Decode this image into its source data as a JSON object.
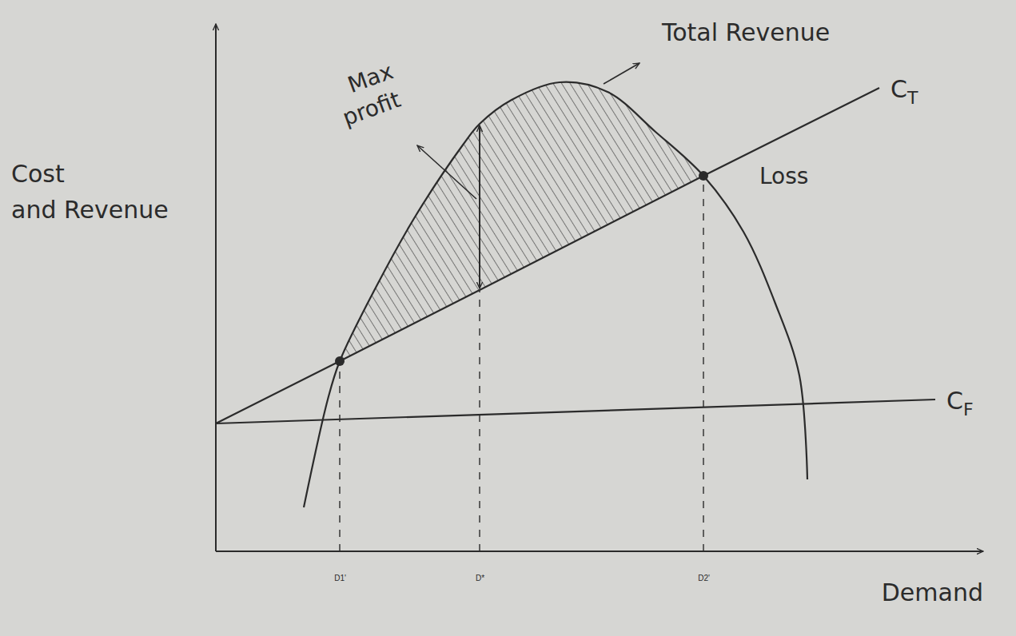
{
  "chart_data": {
    "type": "line",
    "x_label": "Demand",
    "y_label": "Cost and Revenue",
    "xlim": [
      0,
      96
    ],
    "ylim": [
      0,
      66
    ],
    "xticks": [
      {
        "value": 15.5,
        "label": "D1'"
      },
      {
        "value": 33,
        "label": "D*"
      },
      {
        "value": 61,
        "label": "D2'"
      }
    ],
    "tick_labels": "x",
    "series": [
      {
        "name": "Total Revenue",
        "type": "spline",
        "color": "#2b2b2b",
        "x": [
          11,
          14,
          15.5,
          20,
          25,
          31,
          33,
          37,
          43,
          49,
          55,
          61,
          66,
          70,
          73,
          74
        ],
        "values": [
          5.5,
          19,
          23.8,
          33,
          42,
          51,
          53.5,
          56.5,
          58.7,
          57.5,
          52.5,
          47,
          40,
          31,
          22,
          9
        ]
      },
      {
        "name": "CT",
        "type": "line",
        "color": "#2b2b2b",
        "x": [
          0,
          15.5,
          33,
          61,
          83
        ],
        "values": [
          16,
          23.8,
          32.7,
          47,
          58
        ]
      },
      {
        "name": "CF",
        "type": "line",
        "color": "#2b2b2b",
        "x": [
          0,
          90
        ],
        "values": [
          16,
          19
        ]
      }
    ],
    "annotations": [
      {
        "text": "Max profit",
        "x": 16,
        "y": 57
      },
      {
        "text": "Loss",
        "x": 68,
        "y": 46
      }
    ]
  }
}
